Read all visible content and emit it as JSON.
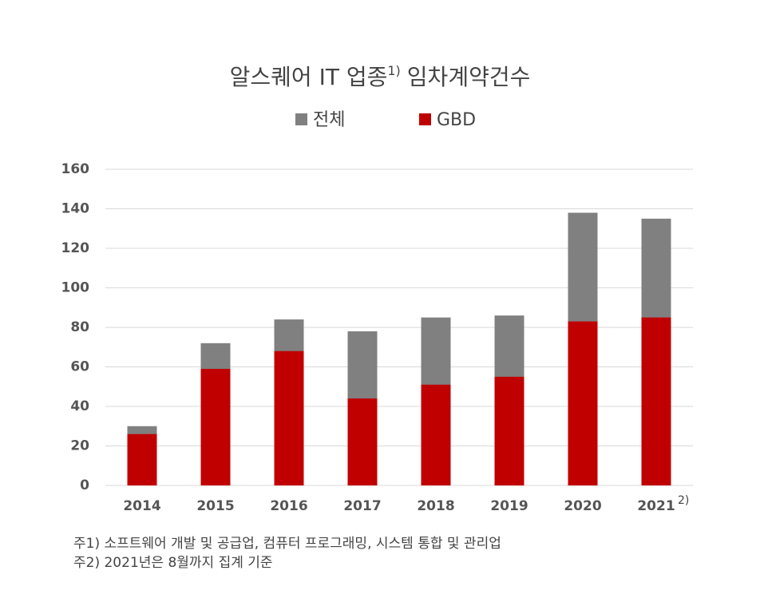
{
  "chart_data": {
    "type": "bar",
    "title": "알스퀘어 IT 업종",
    "title_superscript": "1)",
    "title_suffix": "임차계약건수",
    "categories": [
      "2014",
      "2015",
      "2016",
      "2017",
      "2018",
      "2019",
      "2020",
      "2021"
    ],
    "category_annotation": "2)",
    "series": [
      {
        "name": "전체",
        "color": "#808080",
        "values": [
          30,
          72,
          84,
          78,
          85,
          86,
          138,
          135
        ]
      },
      {
        "name": "GBD",
        "color": "#c00000",
        "values": [
          26,
          59,
          68,
          44,
          51,
          55,
          83,
          85
        ]
      }
    ],
    "ylim": [
      0,
      160
    ],
    "yticks": [
      0,
      20,
      40,
      60,
      80,
      100,
      120,
      140,
      160
    ],
    "grid": true,
    "legend": "top",
    "footnotes": [
      "주1) 소프트웨어 개발 및 공급업, 컴퓨터 프로그래밍, 시스템 통합 및 관리업",
      "주2) 2021년은 8월까지 집계 기준"
    ]
  }
}
